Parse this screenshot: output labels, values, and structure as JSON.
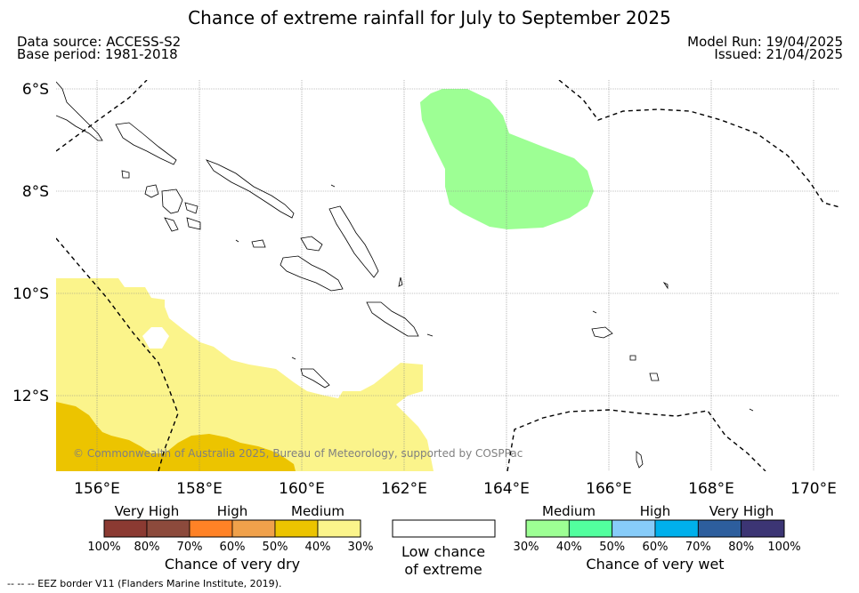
{
  "title": "Chance of extreme rainfall for July to September 2025",
  "meta": {
    "data_source": "Data source: ACCESS-S2",
    "base_period": "Base period: 1981-2018",
    "model_run": "Model Run: 19/04/2025",
    "issued": "Issued: 21/04/2025"
  },
  "map": {
    "lat_labels": [
      "6°S",
      "8°S",
      "10°S",
      "12°S"
    ],
    "lon_labels": [
      "156°E",
      "158°E",
      "160°E",
      "162°E",
      "164°E",
      "166°E",
      "168°E",
      "170°E"
    ],
    "copyright": "© Commonwealth of Australia 2025, Bureau of Meteorology, supported by COSPPac"
  },
  "legend_dry": {
    "categories": [
      "Very High",
      "High",
      "Medium"
    ],
    "ticks": [
      "100%",
      "80%",
      "70%",
      "60%",
      "50%",
      "40%",
      "30%"
    ],
    "colors": [
      "#8b3a32",
      "#8c4a3c",
      "#ff8226",
      "#f0a14b",
      "#ecc400",
      "#fbf48b"
    ],
    "title": "Chance of very dry"
  },
  "legend_low": {
    "title_line1": "Low chance",
    "title_line2": "of extreme"
  },
  "legend_wet": {
    "categories": [
      "Medium",
      "High",
      "Very High"
    ],
    "ticks": [
      "30%",
      "40%",
      "50%",
      "60%",
      "70%",
      "80%",
      "100%"
    ],
    "colors": [
      "#9dff94",
      "#52ff9e",
      "#87ccf9",
      "#00b0ec",
      "#2d5e9d",
      "#3c3574"
    ],
    "title": "Chance of very wet"
  },
  "footnote": "--  --  -- EEZ border V11 (Flanders Marine Institute, 2019)."
}
